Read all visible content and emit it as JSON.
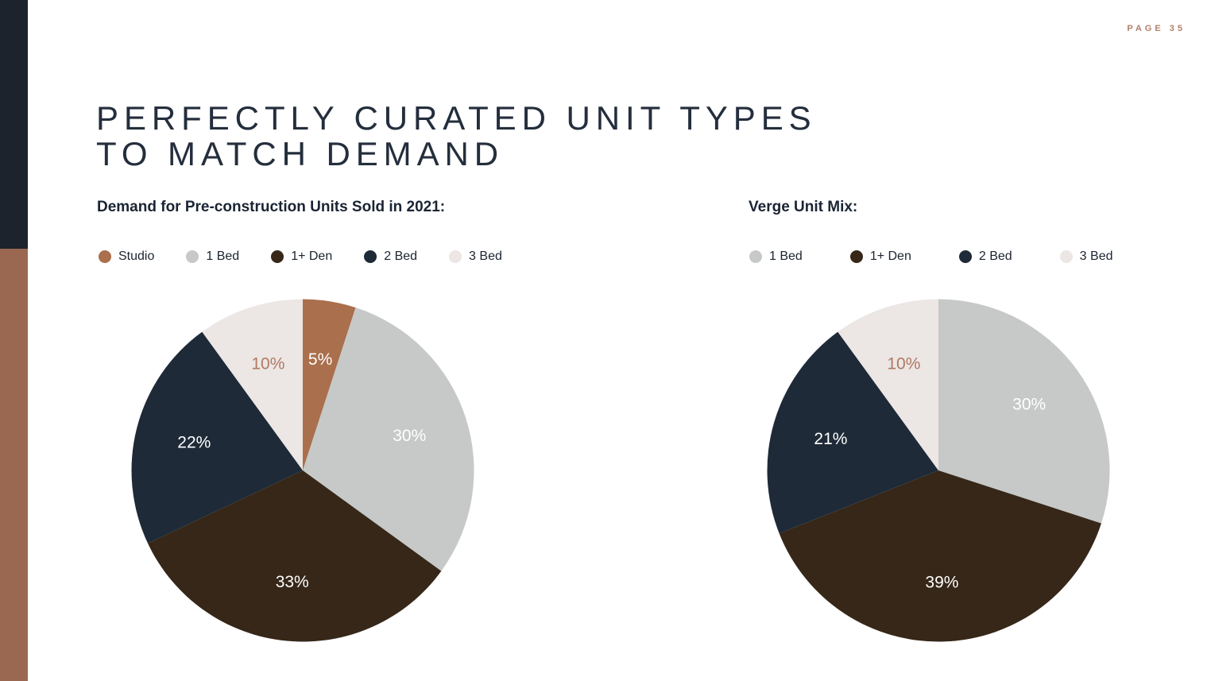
{
  "page_label": "PAGE 35",
  "title": {
    "line1": "PERFECTLY CURATED UNIT TYPES",
    "line2": "TO MATCH DEMAND"
  },
  "colors": {
    "background": "#ffffff",
    "sidebar_navy": "#1d232c",
    "sidebar_brown": "#9a6850",
    "title_text": "#242e3c",
    "subtitle_text": "#1a2433",
    "page_label_text": "#b2806a",
    "legend_text": "#1c2430",
    "accent_copper": "#aa6f4c",
    "accent_light_gray": "#c6c9c7",
    "accent_dark_brown": "#362718",
    "accent_navy": "#1e2a37",
    "accent_off_white": "#ece6e5",
    "label_copper": "#b07a61",
    "label_white": "#ffffff"
  },
  "chart_data": [
    {
      "type": "pie",
      "title": "Demand for Pre-construction Units Sold in 2021:",
      "start_angle": "12 o'clock, clockwise",
      "legend_position": "top",
      "slices": [
        {
          "label": "Studio",
          "value": 5,
          "color": "#aa6f4c",
          "label_color": "#ffffff"
        },
        {
          "label": "1 Bed",
          "value": 30,
          "color": "#c6c9c7",
          "label_color": "#ffffff"
        },
        {
          "label": "1+ Den",
          "value": 33,
          "color": "#362718",
          "label_color": "#ffffff"
        },
        {
          "label": "2 Bed",
          "value": 22,
          "color": "#1e2a37",
          "label_color": "#ffffff"
        },
        {
          "label": "3 Bed",
          "value": 10,
          "color": "#ece6e5",
          "label_color": "#b07a61"
        }
      ]
    },
    {
      "type": "pie",
      "title": "Verge Unit Mix:",
      "start_angle": "12 o'clock, clockwise",
      "legend_position": "top",
      "slices": [
        {
          "label": "1 Bed",
          "value": 30,
          "color": "#c6c9c7",
          "label_color": "#ffffff"
        },
        {
          "label": "1+ Den",
          "value": 39,
          "color": "#362718",
          "label_color": "#ffffff"
        },
        {
          "label": "2 Bed",
          "value": 21,
          "color": "#1e2a37",
          "label_color": "#ffffff"
        },
        {
          "label": "3 Bed",
          "value": 10,
          "color": "#ece6e5",
          "label_color": "#b07a61"
        }
      ]
    }
  ]
}
